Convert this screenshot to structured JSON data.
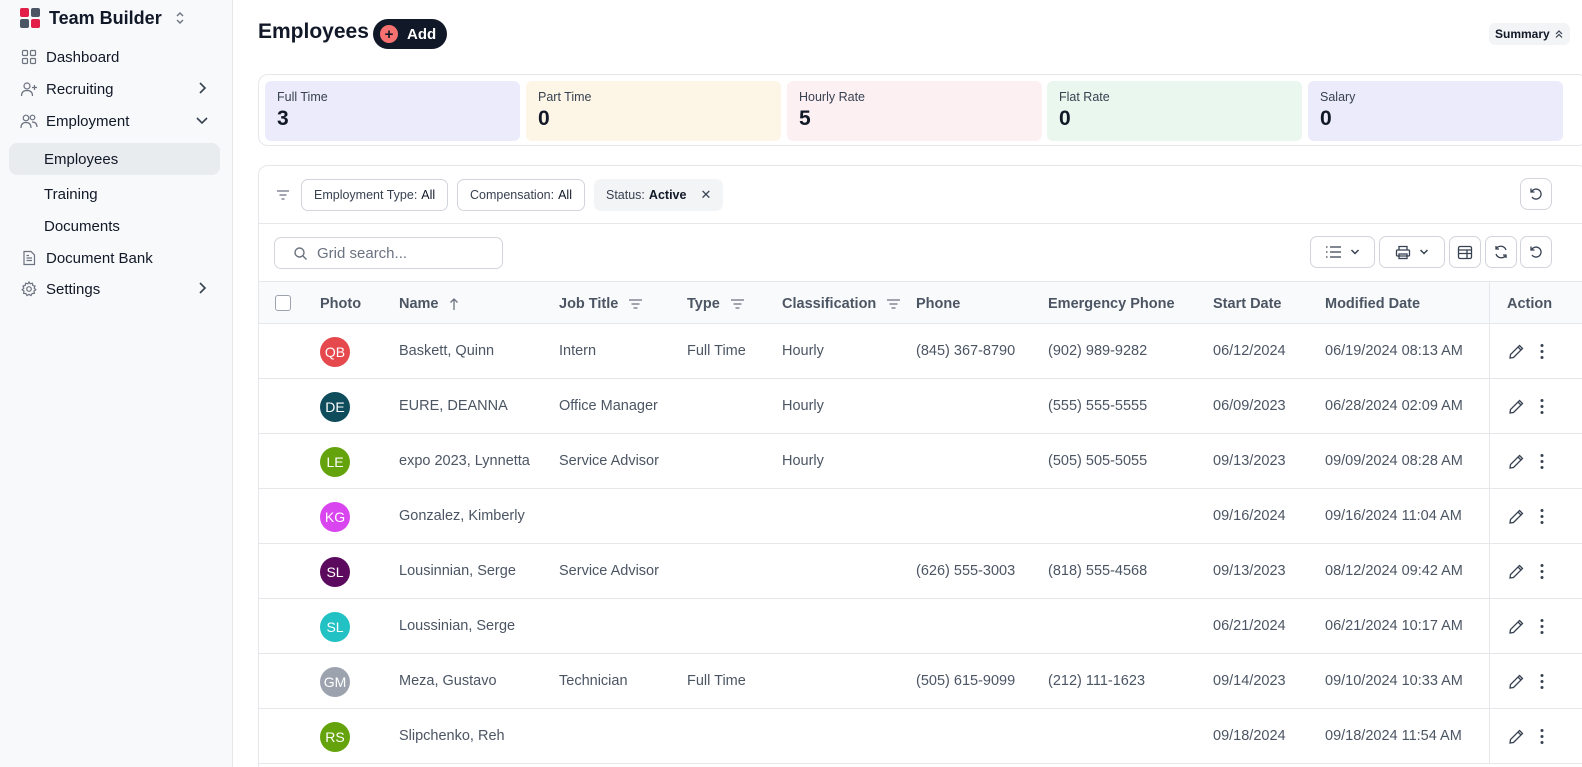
{
  "app": {
    "title": "Team Builder",
    "logo_colors": [
      "#e11d48",
      "#4b5563",
      "#4b5563",
      "#e11d48"
    ]
  },
  "sidebar": {
    "items": [
      {
        "label": "Dashboard",
        "icon": "grid-icon"
      },
      {
        "label": "Recruiting",
        "icon": "user-plus-icon",
        "chevron": "right"
      },
      {
        "label": "Employment",
        "icon": "users-icon",
        "chevron": "down"
      },
      {
        "label": "Employees",
        "active": true,
        "sub": true
      },
      {
        "label": "Training",
        "sub": true
      },
      {
        "label": "Documents",
        "sub": true
      },
      {
        "label": "Document Bank",
        "icon": "document-icon"
      },
      {
        "label": "Settings",
        "icon": "gear-icon",
        "chevron": "right"
      }
    ]
  },
  "header": {
    "title": "Employees",
    "add_label": "Add",
    "summary_label": "Summary"
  },
  "stats": [
    {
      "label": "Full Time",
      "value": "3",
      "color": "#ecebfb"
    },
    {
      "label": "Part Time",
      "value": "0",
      "color": "#fdf6e7"
    },
    {
      "label": "Hourly Rate",
      "value": "5",
      "color": "#fdf0f3"
    },
    {
      "label": "Flat Rate",
      "value": "0",
      "color": "#eaf7ee"
    },
    {
      "label": "Salary",
      "value": "0",
      "color": "#ecebfb"
    }
  ],
  "filters": [
    {
      "label": "Employment Type:",
      "value": "All"
    },
    {
      "label": "Compensation:",
      "value": "All"
    },
    {
      "label": "Status:",
      "value": "Active",
      "removable": true
    }
  ],
  "search": {
    "placeholder": "Grid search..."
  },
  "columns": {
    "photo": "Photo",
    "name": "Name",
    "job_title": "Job Title",
    "type": "Type",
    "classification": "Classification",
    "phone": "Phone",
    "emergency_phone": "Emergency Phone",
    "start_date": "Start Date",
    "modified_date": "Modified Date",
    "action": "Action"
  },
  "rows": [
    {
      "initials": "QB",
      "color": "#e5484d",
      "name": "Baskett, Quinn",
      "job_title": "Intern",
      "type": "Full Time",
      "classification": "Hourly",
      "phone": "(845) 367-8790",
      "emergency_phone": "(902) 989-9282",
      "start_date": "06/12/2024",
      "modified_date": "06/19/2024 08:13 AM"
    },
    {
      "initials": "DE",
      "color": "#0f4c5c",
      "name": "EURE, DEANNA",
      "job_title": "Office Manager",
      "type": "",
      "classification": "Hourly",
      "phone": "",
      "emergency_phone": "(555) 555-5555",
      "start_date": "06/09/2023",
      "modified_date": "06/28/2024 02:09 AM"
    },
    {
      "initials": "LE",
      "color": "#65a30d",
      "name": "expo 2023, Lynnetta",
      "job_title": "Service Advisor",
      "type": "",
      "classification": "Hourly",
      "phone": "",
      "emergency_phone": "(505) 505-5055",
      "start_date": "09/13/2023",
      "modified_date": "09/09/2024 08:28 AM"
    },
    {
      "initials": "KG",
      "color": "#d946ef",
      "name": "Gonzalez, Kimberly",
      "job_title": "",
      "type": "",
      "classification": "",
      "phone": "",
      "emergency_phone": "",
      "start_date": "09/16/2024",
      "modified_date": "09/16/2024 11:04 AM"
    },
    {
      "initials": "SL",
      "color": "#5b0a5e",
      "name": "Lousinnian, Serge",
      "job_title": "Service Advisor",
      "type": "",
      "classification": "",
      "phone": "(626) 555-3003",
      "emergency_phone": "(818) 555-4568",
      "start_date": "09/13/2023",
      "modified_date": "08/12/2024 09:42 AM"
    },
    {
      "initials": "SL",
      "color": "#22c1c3",
      "name": "Loussinian, Serge",
      "job_title": "",
      "type": "",
      "classification": "",
      "phone": "",
      "emergency_phone": "",
      "start_date": "06/21/2024",
      "modified_date": "06/21/2024 10:17 AM"
    },
    {
      "initials": "GM",
      "color": "#9ca3af",
      "name": "Meza, Gustavo",
      "job_title": "Technician",
      "type": "Full Time",
      "classification": "",
      "phone": "(505) 615-9099",
      "emergency_phone": "(212) 111-1623",
      "start_date": "09/14/2023",
      "modified_date": "09/10/2024 10:33 AM"
    },
    {
      "initials": "RS",
      "color": "#65a30d",
      "name": "Slipchenko, Reh",
      "job_title": "",
      "type": "",
      "classification": "",
      "phone": "",
      "emergency_phone": "",
      "start_date": "09/18/2024",
      "modified_date": "09/18/2024 11:54 AM"
    }
  ]
}
